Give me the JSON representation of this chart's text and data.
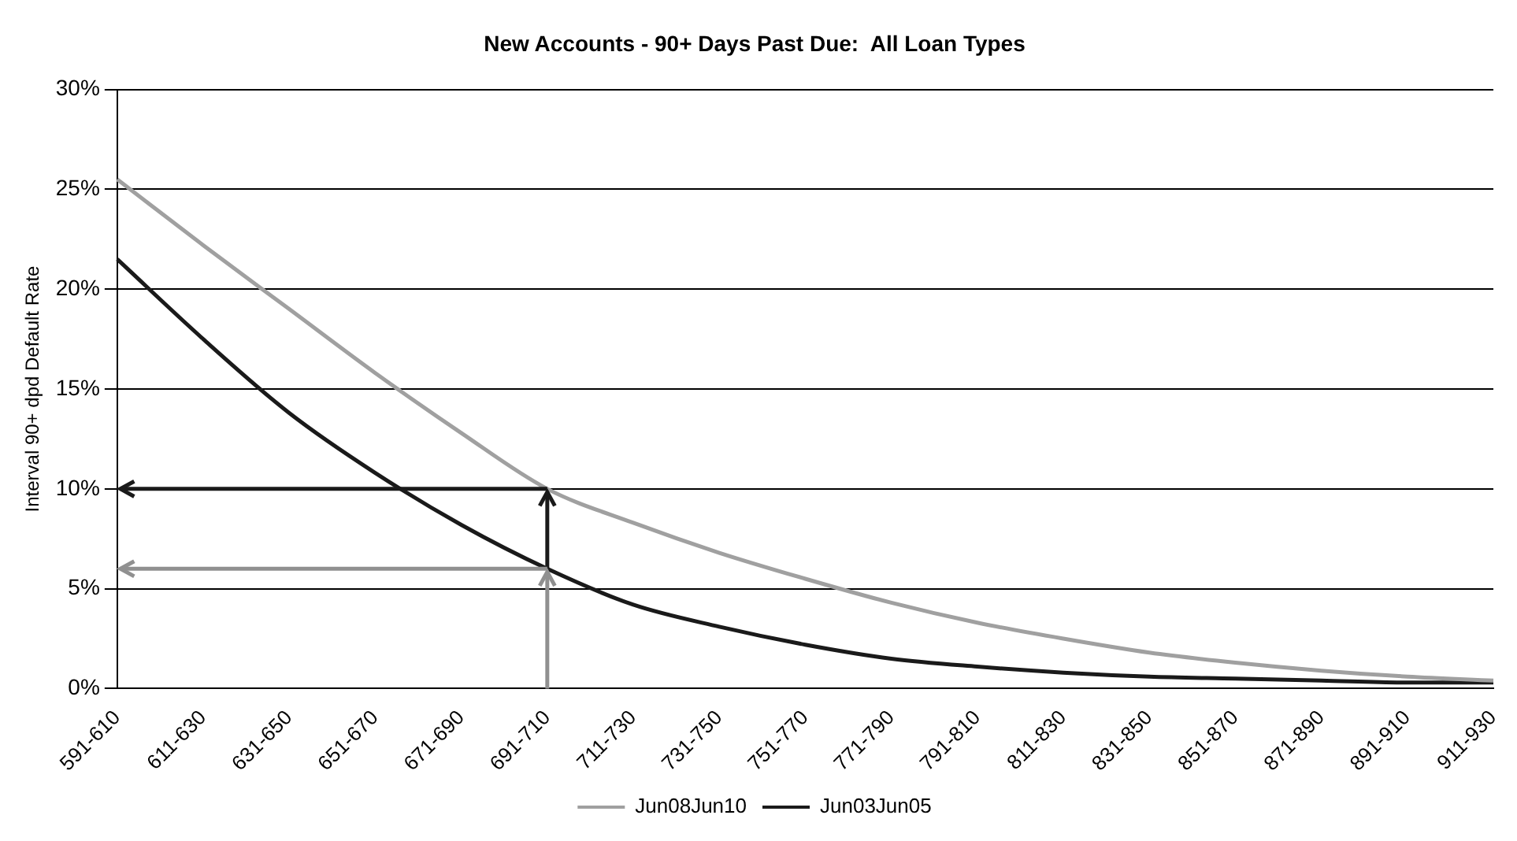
{
  "chart_data": {
    "type": "line",
    "title": "New Accounts - 90+ Days Past Due:  All Loan Types",
    "ylabel": "Interval 90+ dpd Default Rate",
    "categories": [
      "591-610",
      "611-630",
      "631-650",
      "651-670",
      "671-690",
      "691-710",
      "711-730",
      "731-750",
      "751-770",
      "771-790",
      "791-810",
      "811-830",
      "831-850",
      "851-870",
      "871-890",
      "891-910",
      "911-930"
    ],
    "series": [
      {
        "name": "Jun08Jun10",
        "color": "#a0a0a0",
        "values": [
          25.5,
          22.2,
          19,
          15.8,
          12.8,
          10,
          8.3,
          6.8,
          5.5,
          4.3,
          3.3,
          2.5,
          1.8,
          1.3,
          0.9,
          0.6,
          0.4
        ]
      },
      {
        "name": "Jun03Jun05",
        "color": "#1a1a1a",
        "values": [
          21.5,
          17.5,
          13.8,
          10.8,
          8.2,
          6,
          4.2,
          3.1,
          2.2,
          1.5,
          1.1,
          0.8,
          0.6,
          0.5,
          0.4,
          0.3,
          0.3
        ]
      }
    ],
    "ylim": [
      0,
      30
    ],
    "yticks": [
      {
        "value": 0,
        "label": "0%"
      },
      {
        "value": 5,
        "label": "5%"
      },
      {
        "value": 10,
        "label": "10%"
      },
      {
        "value": 15,
        "label": "15%"
      },
      {
        "value": 20,
        "label": "20%"
      },
      {
        "value": 25,
        "label": "25%"
      },
      {
        "value": 30,
        "label": "30%"
      }
    ],
    "grid": "y",
    "legend": "bottom",
    "marker": "none",
    "line_style": "solid"
  }
}
